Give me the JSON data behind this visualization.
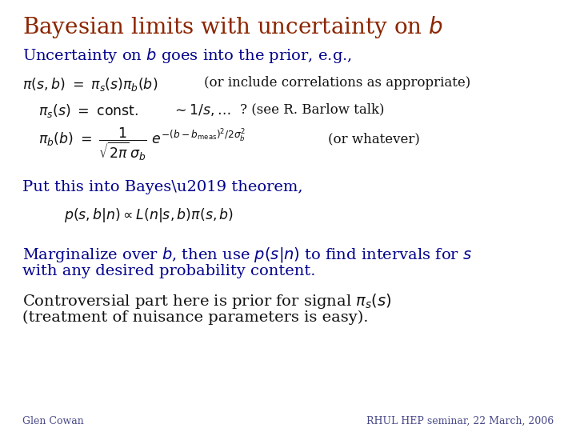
{
  "title": "Bayesian limits with uncertainty on $b$",
  "title_color": "#8B2500",
  "title_fontsize": 20,
  "background_color": "#ffffff",
  "blue_color": "#00008B",
  "black_color": "#111111",
  "body_fontsize": 14,
  "eq_fontsize": 12.5,
  "comment_fontsize": 12,
  "footer_left": "Glen Cowan",
  "footer_right": "RHUL HEP seminar, 22 March, 2006",
  "footer_color": "#4a4a8a",
  "footer_fontsize": 9
}
